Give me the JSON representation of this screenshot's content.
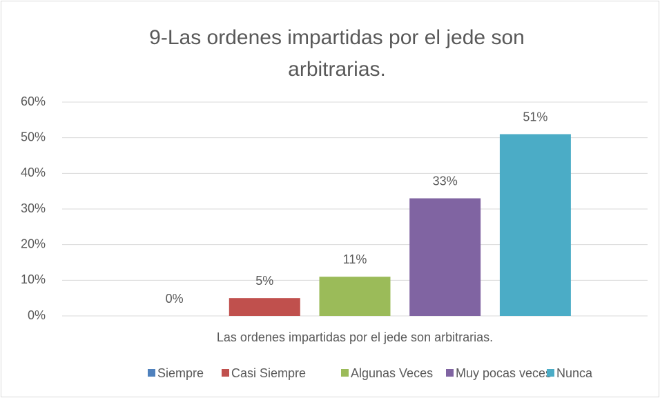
{
  "chart_data": {
    "type": "bar",
    "title": "9-Las ordenes impartidas por el jede son arbitrarias.",
    "categories": [
      "Las ordenes impartidas por el jede son arbitrarias."
    ],
    "series": [
      {
        "name": "Siempre",
        "color": "#4f81bd",
        "values": [
          0
        ],
        "value_labels": [
          "0%"
        ]
      },
      {
        "name": "Casi Siempre",
        "color": "#c0504d",
        "values": [
          5
        ],
        "value_labels": [
          "5%"
        ]
      },
      {
        "name": "Algunas Veces",
        "color": "#9bbb59",
        "values": [
          11
        ],
        "value_labels": [
          "11%"
        ]
      },
      {
        "name": "Muy pocas veces",
        "color": "#8064a2",
        "values": [
          33
        ],
        "value_labels": [
          "33%"
        ]
      },
      {
        "name": "Nunca",
        "color": "#4bacc6",
        "values": [
          51
        ],
        "value_labels": [
          "51%"
        ]
      }
    ],
    "ylim": [
      0,
      60
    ],
    "yticks": [
      {
        "value": 0,
        "label": "0%"
      },
      {
        "value": 10,
        "label": "10%"
      },
      {
        "value": 20,
        "label": "20%"
      },
      {
        "value": 30,
        "label": "30%"
      },
      {
        "value": 40,
        "label": "40%"
      },
      {
        "value": 50,
        "label": "50%"
      },
      {
        "value": 60,
        "label": "60%"
      }
    ],
    "grid": true,
    "legend": "bottom"
  }
}
